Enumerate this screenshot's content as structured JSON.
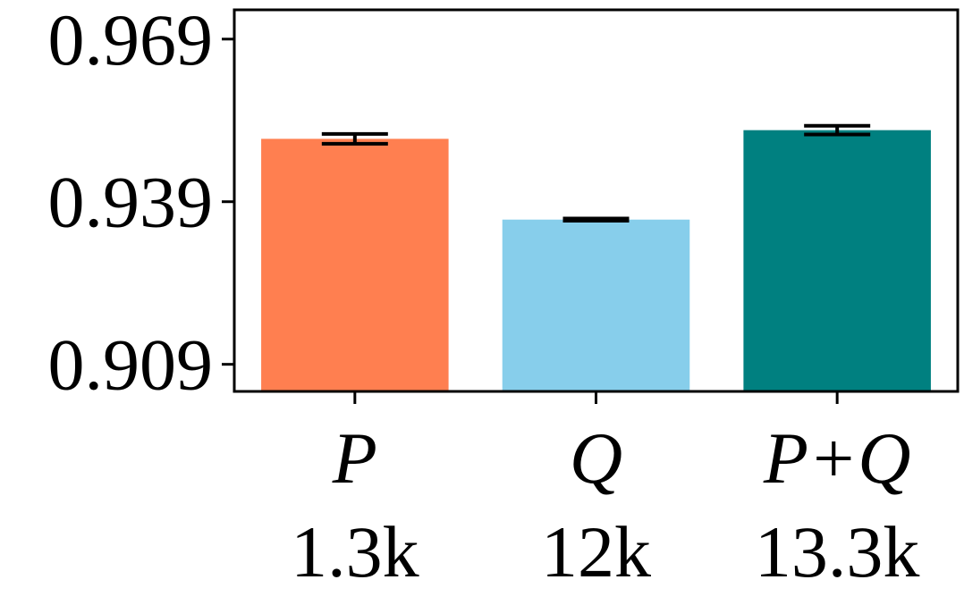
{
  "chart_data": {
    "type": "bar",
    "categories": [
      "P",
      "Q",
      "P+Q"
    ],
    "category_sublabels": [
      "1.3k",
      "12k",
      "13.3k"
    ],
    "values": [
      0.9506,
      0.9357,
      0.9522
    ],
    "error": [
      0.0009,
      0.0002,
      0.0008
    ],
    "colors": [
      "#FF7F50",
      "#87CEEB",
      "#008080"
    ],
    "yticks": [
      0.909,
      0.939,
      0.969
    ],
    "ytick_labels": [
      "0.909",
      "0.939",
      "0.969"
    ],
    "ylim": [
      0.904,
      0.9744
    ],
    "title": "",
    "xlabel": "",
    "ylabel": "",
    "grid": false,
    "legend": false
  }
}
